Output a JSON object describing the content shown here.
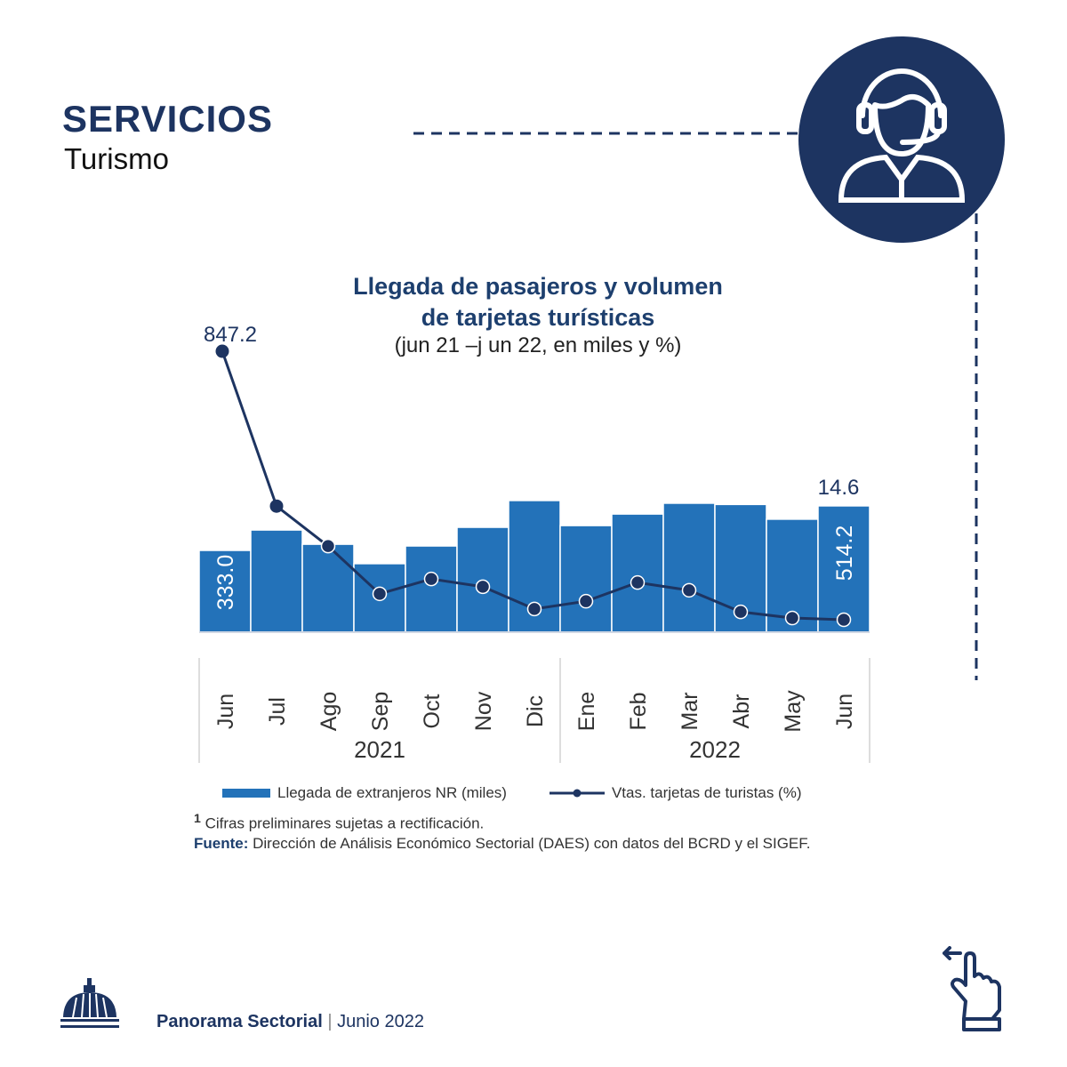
{
  "header": {
    "title": "SERVICIOS",
    "subtitle": "Turismo"
  },
  "chart_data": {
    "type": "bar+line",
    "title_line1": "Llegada de pasajeros y volumen",
    "title_line2": "de tarjetas turísticas",
    "subtitle": "(jun 21 –j un 22, en miles y %)",
    "categories": [
      "Jun",
      "Jul",
      "Ago",
      "Sep",
      "Oct",
      "Nov",
      "Dic",
      "Ene",
      "Feb",
      "Mar",
      "Abr",
      "May",
      "Jun"
    ],
    "year_groups": [
      {
        "label": "2021",
        "count": 7
      },
      {
        "label": "2022",
        "count": 6
      }
    ],
    "series": [
      {
        "name": "Llegada de extranjeros NR (miles)",
        "type": "bar",
        "color": "#2372b9",
        "values": [
          333.0,
          416,
          358,
          279,
          351,
          427,
          536,
          434,
          481,
          525,
          520,
          460,
          514.2
        ]
      },
      {
        "name": "Vtas. tarjetas de turistas (%)",
        "type": "line",
        "color": "#1d3461",
        "values": [
          847.2,
          367,
          243,
          95,
          141,
          117,
          48,
          72,
          130,
          106,
          39,
          20,
          14.6
        ]
      }
    ],
    "data_labels": {
      "bar_first": "333.0",
      "bar_last": "514.2",
      "line_first": "847.2",
      "line_last": "14.6"
    }
  },
  "notes": {
    "superscript": "1",
    "preliminary": "Cifras preliminares sujetas a rectificación.",
    "source_label": "Fuente:",
    "source_text": "Dirección de Análisis Económico Sectorial (DAES) con datos del BCRD y el SIGEF."
  },
  "footer": {
    "brand": "Panorama Sectorial",
    "separator": "|",
    "date": "Junio 2022"
  },
  "colors": {
    "navy": "#1d3461",
    "bar": "#2372b9"
  }
}
